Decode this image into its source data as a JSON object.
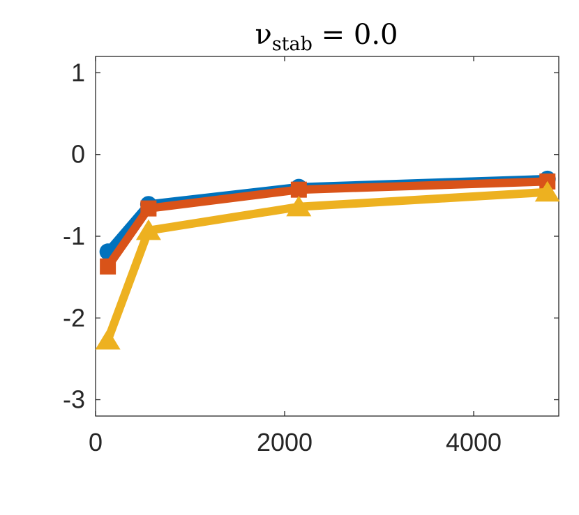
{
  "chart_data": {
    "type": "line",
    "title": {
      "symbol": "ν",
      "subscript": "stab",
      "rest": " = 0.0"
    },
    "xlabel": "",
    "ylabel": "",
    "xlim": [
      0,
      4900
    ],
    "ylim": [
      -3.2,
      1.2
    ],
    "x_ticks": [
      0,
      2000,
      4000
    ],
    "x_tick_labels": [
      "0",
      "2000",
      "4000"
    ],
    "y_ticks": [
      1,
      0,
      -1,
      -2,
      -3
    ],
    "y_tick_labels": [
      "1",
      "0",
      "-1",
      "-2",
      "-3"
    ],
    "grid": false,
    "series": [
      {
        "color": "#0072BD",
        "marker": "circle",
        "x": [
          130,
          560,
          2150,
          4780
        ],
        "y": [
          -1.19,
          -0.61,
          -0.4,
          -0.3
        ]
      },
      {
        "color": "#D95319",
        "marker": "square",
        "x": [
          130,
          560,
          2150,
          4780
        ],
        "y": [
          -1.37,
          -0.66,
          -0.43,
          -0.33
        ]
      },
      {
        "color": "#EDB120",
        "marker": "triangle",
        "x": [
          130,
          560,
          2150,
          4780
        ],
        "y": [
          -2.27,
          -0.93,
          -0.64,
          -0.46
        ]
      }
    ]
  }
}
